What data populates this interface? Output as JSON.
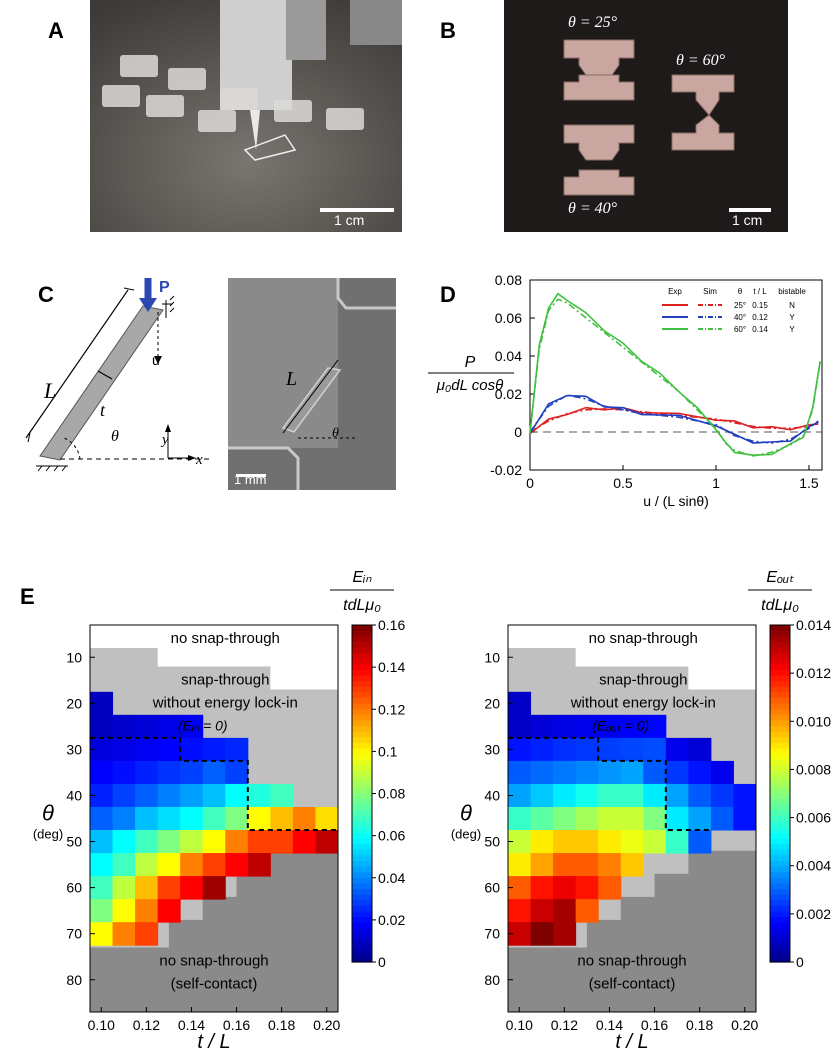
{
  "panels": {
    "a": {
      "letter": "A",
      "scale": "1 cm"
    },
    "b": {
      "letter": "B",
      "scale": "1 cm",
      "labels": [
        "θ = 25°",
        "θ = 60°",
        "θ = 40°"
      ]
    },
    "c": {
      "letter": "C",
      "force": "P",
      "disp": "u",
      "length": "L",
      "thick": "t",
      "angle": "θ",
      "axis_x": "x",
      "axis_y": "y",
      "photo_scale": "1 mm"
    },
    "d": {
      "letter": "D"
    },
    "e": {
      "letter": "E"
    }
  },
  "colors": {
    "red": "#e02020",
    "blue": "#2040c0",
    "green": "#40c040",
    "gray": "#808080",
    "lightgray": "#c0c0c0"
  },
  "chart_data": [
    {
      "type": "line",
      "panel": "D",
      "xlabel": "u / (L sinθ)",
      "ylabel_num": "P",
      "ylabel_den": "μ₀dL cosθ",
      "xlim": [
        0,
        1.57
      ],
      "ylim": [
        -0.02,
        0.08
      ],
      "xticks": [
        "0",
        "0.5",
        "1",
        "1.5"
      ],
      "yticks": [
        "-0.02",
        "0",
        "0.02",
        "0.04",
        "0.06",
        "0.08"
      ],
      "legend_header": [
        "Exp",
        "Sim",
        "θ",
        "t / L",
        "bistable"
      ],
      "legend_rows": [
        [
          "25°",
          "0.15",
          "N"
        ],
        [
          "40°",
          "0.12",
          "Y"
        ],
        [
          "60°",
          "0.14",
          "Y"
        ]
      ],
      "series": [
        {
          "name": "25°",
          "color": "#e02020",
          "x": [
            0,
            0.1,
            0.2,
            0.3,
            0.4,
            0.5,
            0.6,
            0.8,
            1.0,
            1.1,
            1.2,
            1.3,
            1.4,
            1.5,
            1.55
          ],
          "y": [
            0,
            0.006,
            0.01,
            0.012,
            0.0125,
            0.012,
            0.011,
            0.009,
            0.007,
            0.005,
            0.003,
            0.002,
            0.002,
            0.003,
            0.005
          ]
        },
        {
          "name": "40°",
          "color": "#2040c0",
          "x": [
            0,
            0.1,
            0.2,
            0.3,
            0.4,
            0.5,
            0.6,
            0.8,
            1.0,
            1.1,
            1.2,
            1.3,
            1.4,
            1.5,
            1.55
          ],
          "y": [
            0,
            0.014,
            0.02,
            0.018,
            0.014,
            0.012,
            0.01,
            0.008,
            0.004,
            -0.002,
            -0.005,
            -0.006,
            -0.004,
            0.002,
            0.006
          ]
        },
        {
          "name": "60°",
          "color": "#40c040",
          "x": [
            0,
            0.05,
            0.1,
            0.15,
            0.2,
            0.3,
            0.4,
            0.5,
            0.6,
            0.7,
            0.8,
            0.9,
            1.0,
            1.05,
            1.1,
            1.2,
            1.3,
            1.4,
            1.47,
            1.52,
            1.56
          ],
          "y": [
            0,
            0.045,
            0.066,
            0.072,
            0.07,
            0.062,
            0.054,
            0.046,
            0.038,
            0.03,
            0.022,
            0.012,
            0.002,
            -0.006,
            -0.01,
            -0.013,
            -0.011,
            -0.007,
            -0.002,
            0.012,
            0.038
          ]
        }
      ]
    },
    {
      "type": "heatmap",
      "panel": "E-left",
      "xlabel": "t / L",
      "ylabel": "θ",
      "ylabel_unit": "(deg)",
      "colorbar_num": "Eᵢₙ",
      "colorbar_den": "tdLμ₀",
      "colorbar_range": [
        0,
        0.16
      ],
      "colorbar_ticks": [
        "0",
        "0.02",
        "0.04",
        "0.06",
        "0.08",
        "0.1",
        "0.12",
        "0.14",
        "0.16"
      ],
      "xticks": [
        "0.10",
        "0.12",
        "0.14",
        "0.16",
        "0.18",
        "0.20"
      ],
      "yticks": [
        "10",
        "20",
        "30",
        "40",
        "50",
        "60",
        "70",
        "80"
      ],
      "region_labels": [
        "no snap-through",
        "snap-through",
        "without energy lock-in",
        "(Eᵢₙ = 0)",
        "no snap-through",
        "(self-contact)"
      ],
      "x_values": [
        0.1,
        0.11,
        0.12,
        0.13,
        0.14,
        0.15,
        0.16,
        0.17,
        0.18,
        0.19,
        0.2
      ],
      "theta_values": [
        20,
        25,
        30,
        35,
        40,
        45,
        50,
        55,
        60,
        65,
        70
      ],
      "rows": [
        [
          0.01,
          null,
          null,
          null,
          null,
          null,
          null,
          null,
          null,
          null,
          null
        ],
        [
          0.01,
          0.012,
          0.014,
          0.016,
          0.018,
          null,
          null,
          null,
          null,
          null,
          null
        ],
        [
          0.015,
          0.016,
          0.018,
          0.02,
          0.022,
          0.024,
          0.026,
          null,
          null,
          null,
          null
        ],
        [
          0.02,
          0.022,
          0.025,
          0.028,
          0.03,
          0.035,
          0.03,
          null,
          null,
          null,
          null
        ],
        [
          0.025,
          0.03,
          0.035,
          0.04,
          0.045,
          0.05,
          0.06,
          0.065,
          0.07,
          null,
          null
        ],
        [
          0.035,
          0.04,
          0.05,
          0.055,
          0.06,
          0.07,
          0.08,
          0.1,
          0.11,
          0.12,
          0.105
        ],
        [
          0.05,
          0.06,
          0.07,
          0.08,
          0.09,
          0.1,
          0.12,
          0.13,
          0.13,
          0.14,
          0.15
        ],
        [
          0.06,
          0.07,
          0.09,
          0.1,
          0.12,
          0.13,
          0.14,
          0.15,
          null,
          null,
          null
        ],
        [
          0.07,
          0.09,
          0.11,
          0.13,
          0.14,
          0.155,
          null,
          null,
          null,
          null,
          null
        ],
        [
          0.08,
          0.1,
          0.12,
          0.14,
          null,
          null,
          null,
          null,
          null,
          null,
          null
        ],
        [
          0.1,
          0.12,
          0.13,
          null,
          null,
          null,
          null,
          null,
          null,
          null,
          null
        ]
      ]
    },
    {
      "type": "heatmap",
      "panel": "E-right",
      "xlabel": "t / L",
      "ylabel": "θ",
      "ylabel_unit": "(deg)",
      "colorbar_num": "Eₒᵤₜ",
      "colorbar_den": "tdLμ₀",
      "colorbar_range": [
        0,
        0.014
      ],
      "colorbar_ticks": [
        "0",
        "0.002",
        "0.004",
        "0.006",
        "0.008",
        "0.010",
        "0.012",
        "0.014"
      ],
      "xticks": [
        "0.10",
        "0.12",
        "0.14",
        "0.16",
        "0.18",
        "0.20"
      ],
      "yticks": [
        "10",
        "20",
        "30",
        "40",
        "50",
        "60",
        "70",
        "80"
      ],
      "region_labels": [
        "no snap-through",
        "snap-through",
        "without energy lock-in",
        "(Eₒᵤₜ = 0)",
        "no snap-through",
        "(self-contact)"
      ],
      "x_values": [
        0.1,
        0.11,
        0.12,
        0.13,
        0.14,
        0.15,
        0.16,
        0.17,
        0.18,
        0.19,
        0.2
      ],
      "theta_values": [
        20,
        25,
        30,
        35,
        40,
        45,
        50,
        55,
        60,
        65,
        70
      ],
      "rows": [
        [
          0.001,
          null,
          null,
          null,
          null,
          null,
          null,
          null,
          null,
          null,
          null
        ],
        [
          0.001,
          0.0012,
          0.0014,
          0.0015,
          0.0016,
          0.0017,
          0.0018,
          null,
          null,
          null,
          null
        ],
        [
          0.002,
          0.0022,
          0.0024,
          0.0025,
          0.0026,
          0.0027,
          0.0028,
          0.0015,
          0.0012,
          null,
          null
        ],
        [
          0.003,
          0.0032,
          0.0034,
          0.0036,
          0.0038,
          0.004,
          0.003,
          0.0025,
          0.002,
          0.0015,
          null
        ],
        [
          0.004,
          0.0045,
          0.005,
          0.0055,
          0.006,
          0.006,
          0.005,
          0.004,
          0.003,
          0.0025,
          0.002
        ],
        [
          0.006,
          0.0065,
          0.007,
          0.0075,
          0.008,
          0.008,
          0.007,
          0.005,
          0.004,
          0.003,
          0.002
        ],
        [
          0.008,
          0.009,
          0.0095,
          0.0095,
          0.009,
          0.0085,
          0.008,
          0.006,
          0.003,
          null,
          null
        ],
        [
          0.009,
          0.01,
          0.011,
          0.011,
          0.0105,
          0.0095,
          null,
          null,
          null,
          null,
          null
        ],
        [
          0.011,
          0.012,
          0.0125,
          0.012,
          0.011,
          null,
          null,
          null,
          null,
          null,
          null
        ],
        [
          0.012,
          0.013,
          0.0135,
          0.011,
          null,
          null,
          null,
          null,
          null,
          null,
          null
        ],
        [
          0.013,
          0.0145,
          0.0135,
          null,
          null,
          null,
          null,
          null,
          null,
          null,
          null
        ]
      ]
    }
  ]
}
